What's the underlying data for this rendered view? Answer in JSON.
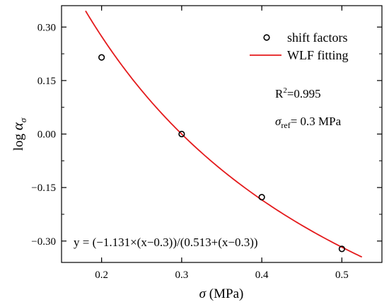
{
  "chart_data": {
    "type": "scatter",
    "xlabel": {
      "symbol": "σ",
      "unit": " (MPa)"
    },
    "ylabel": {
      "prefix": "log ",
      "symbol": "α",
      "sub": "σ"
    },
    "xlim": [
      0.15,
      0.55
    ],
    "ylim": [
      -0.36,
      0.36
    ],
    "x_ticks": [
      0.2,
      0.3,
      0.4,
      0.5
    ],
    "x_tick_labels": [
      "0.2",
      "0.3",
      "0.4",
      "0.5"
    ],
    "y_ticks": [
      0.3,
      0.15,
      0.0,
      -0.15,
      -0.3
    ],
    "y_tick_labels": [
      "0.30",
      "0.15",
      "0.00",
      "−0.15",
      "−0.30"
    ],
    "grid": false,
    "legend_position": "top-right",
    "series": [
      {
        "name": "shift factors",
        "kind": "scatter",
        "marker": "open-circle",
        "color": "#000000",
        "points": [
          {
            "x": 0.2,
            "y": 0.215
          },
          {
            "x": 0.3,
            "y": 0.0
          },
          {
            "x": 0.4,
            "y": -0.177
          },
          {
            "x": 0.5,
            "y": -0.322
          }
        ]
      },
      {
        "name": "WLF fitting",
        "kind": "line",
        "color": "#e41a1c",
        "x_range": [
          0.18,
          0.525
        ],
        "formula": {
          "a": -1.131,
          "b": 0.513,
          "x0": 0.3
        }
      }
    ],
    "annotations": {
      "r2": {
        "base": "R",
        "sup": "2",
        "rest": "=0.995"
      },
      "sigma_ref": {
        "symbol": "σ",
        "sub": "ref",
        "rest": "= 0.3 MPa"
      },
      "equation": "y = (−1.131×(x−0.3))/(0.513+(x−0.3))"
    }
  }
}
